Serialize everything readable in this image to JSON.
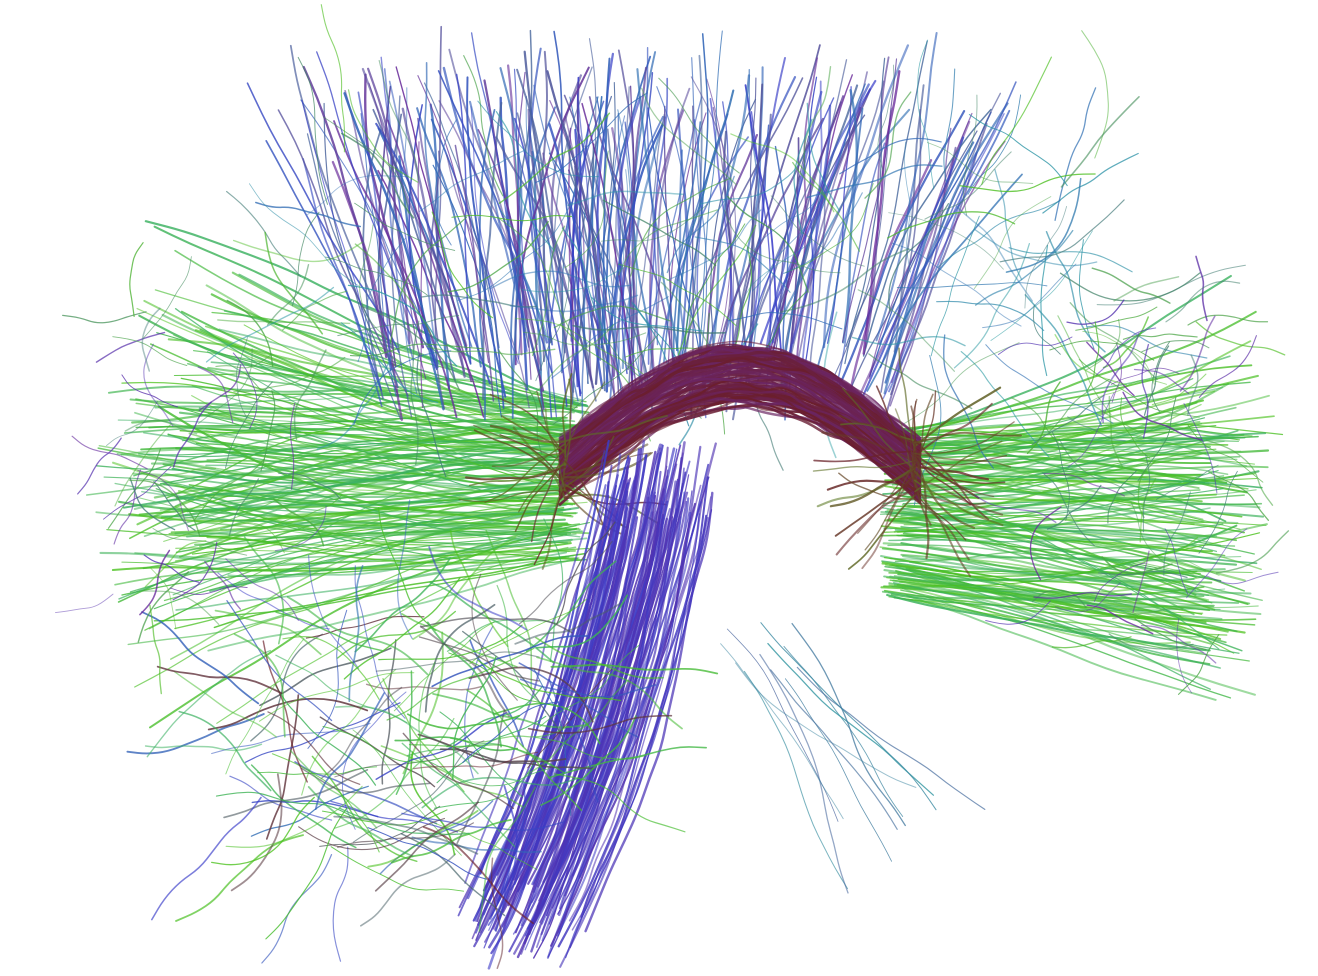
{
  "image": {
    "subject": "diffusion-tensor-tractography-sagittal-view",
    "background": "#ffffff",
    "palette": {
      "anterior_posterior": "#4cc21a",
      "superior_inferior": "#3a3cc8",
      "left_right": "#6b1f2a",
      "mixed_purple": "#6a2a9a",
      "mixed_teal": "#2aa0a0"
    }
  }
}
